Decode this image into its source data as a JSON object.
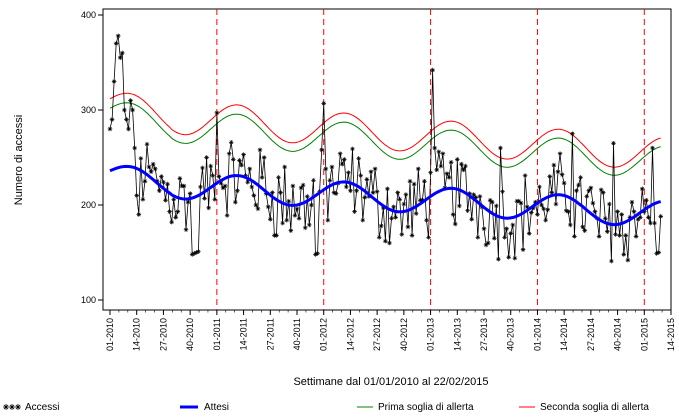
{
  "chart_data": {
    "type": "line",
    "xlabel": "Settimane dal 01/01/2010 al 22/02/2015",
    "ylabel": "Numero di accessi",
    "ylim": [
      100,
      400
    ],
    "yticks": [
      100,
      200,
      300,
      400
    ],
    "xticks": [
      "01-2010",
      "14-2010",
      "27-2010",
      "40-2010",
      "01-2011",
      "14-2011",
      "27-2011",
      "40-2011",
      "01-2012",
      "14-2012",
      "27-2012",
      "40-2012",
      "01-2013",
      "14-2013",
      "27-2013",
      "40-2013",
      "01-2014",
      "14-2014",
      "27-2014",
      "40-2014",
      "01-2015",
      "14-2015"
    ],
    "year_markers": [
      "01-2011",
      "01-2012",
      "01-2013",
      "01-2014",
      "01-2015"
    ],
    "grid": false,
    "legend_position": "bottom",
    "colors": {
      "accessi": "#000000",
      "attesi": "#0000ff",
      "prima": "#008000",
      "seconda": "#ff0000",
      "year_line": "#ff0000"
    },
    "series": [
      {
        "name": "Accessi",
        "marker": "asterisk",
        "values": []
      },
      {
        "name": "Attesi"
      },
      {
        "name": "Prima soglia di allerta"
      },
      {
        "name": "Seconda soglia di allerta"
      }
    ]
  }
}
